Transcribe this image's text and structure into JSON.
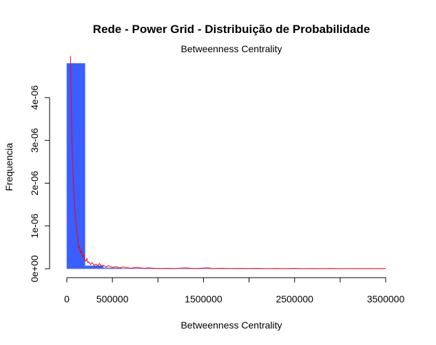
{
  "chart_data": {
    "type": "bar",
    "title": "Rede - Power Grid - Distribuição de Probabilidade",
    "subtitle": "Betweenness Centrality",
    "xlabel": "Betweenness Centrality",
    "ylabel": "Frequencia",
    "xlim": [
      0,
      3500000
    ],
    "ylim": [
      0,
      5e-06
    ],
    "x_ticks": [
      0,
      500000,
      1000000,
      1500000,
      2000000,
      2500000,
      3000000,
      3500000
    ],
    "x_tick_labels": [
      "0",
      "500000",
      "",
      "1500000",
      "",
      "2500000",
      "",
      "3500000"
    ],
    "y_ticks": [
      0,
      1e-06,
      2e-06,
      3e-06,
      4e-06
    ],
    "y_tick_labels": [
      "0e+00",
      "1e-06",
      "2e-06",
      "3e-06",
      "4e-06"
    ],
    "histogram": {
      "bins": [
        [
          0,
          200000
        ],
        [
          200000,
          400000
        ],
        [
          400000,
          600000
        ],
        [
          600000,
          800000
        ],
        [
          800000,
          1000000
        ],
        [
          1000000,
          1200000
        ],
        [
          1200000,
          1400000
        ],
        [
          1400000,
          1600000
        ],
        [
          1600000,
          1800000
        ],
        [
          1800000,
          2000000
        ],
        [
          2000000,
          2200000
        ],
        [
          2200000,
          2400000
        ],
        [
          2400000,
          2600000
        ],
        [
          2600000,
          2800000
        ],
        [
          2800000,
          3000000
        ],
        [
          3000000,
          3200000
        ],
        [
          3200000,
          3400000
        ],
        [
          3400000,
          3600000
        ]
      ],
      "density": [
        4.8e-06,
        7e-08,
        2e-08,
        8e-09,
        5e-09,
        4e-09,
        3e-09,
        3e-09,
        2e-09,
        2e-09,
        2e-09,
        1e-09,
        1e-09,
        1e-09,
        1e-09,
        1e-09,
        1e-09,
        1e-09
      ],
      "color": "#3a5eff"
    },
    "density_line": {
      "color": "#ff0000",
      "points": [
        [
          40000,
          4.97e-06
        ],
        [
          50000,
          3.7e-06
        ],
        [
          60000,
          2.7e-06
        ],
        [
          70000,
          2.1e-06
        ],
        [
          80000,
          1.7e-06
        ],
        [
          90000,
          1.3e-06
        ],
        [
          100000,
          1.1e-06
        ],
        [
          110000,
          8.5e-07
        ],
        [
          120000,
          7e-07
        ],
        [
          130000,
          4.8e-07
        ],
        [
          140000,
          5.2e-07
        ],
        [
          150000,
          3.6e-07
        ],
        [
          160000,
          4.2e-07
        ],
        [
          170000,
          3e-07
        ],
        [
          180000,
          2.8e-07
        ],
        [
          190000,
          3.4e-07
        ],
        [
          200000,
          2e-07
        ],
        [
          210000,
          1.8e-07
        ],
        [
          220000,
          2.4e-07
        ],
        [
          230000,
          1.4e-07
        ],
        [
          240000,
          1.6e-07
        ],
        [
          260000,
          1e-07
        ],
        [
          280000,
          1.4e-07
        ],
        [
          300000,
          8e-08
        ],
        [
          320000,
          1.1e-07
        ],
        [
          340000,
          7e-08
        ],
        [
          360000,
          1.2e-07
        ],
        [
          380000,
          6e-08
        ],
        [
          400000,
          8e-08
        ],
        [
          430000,
          4e-08
        ],
        [
          460000,
          7e-08
        ],
        [
          500000,
          3e-08
        ],
        [
          540000,
          5e-08
        ],
        [
          580000,
          2e-08
        ],
        [
          620000,
          4e-08
        ],
        [
          700000,
          1e-08
        ],
        [
          760000,
          3e-08
        ],
        [
          850000,
          1e-08
        ],
        [
          900000,
          2e-08
        ],
        [
          1000000,
          5e-09
        ],
        [
          1100000,
          1e-08
        ],
        [
          1200000,
          3e-09
        ],
        [
          1300000,
          2e-08
        ],
        [
          1400000,
          5e-09
        ],
        [
          1550000,
          2e-08
        ],
        [
          1600000,
          5e-09
        ],
        [
          1700000,
          1e-08
        ],
        [
          1800000,
          3e-09
        ],
        [
          1900000,
          8e-09
        ],
        [
          2000000,
          3e-09
        ],
        [
          2100000,
          8e-09
        ],
        [
          2200000,
          2e-09
        ],
        [
          2300000,
          6e-09
        ],
        [
          2400000,
          2e-09
        ],
        [
          2500000,
          8e-09
        ],
        [
          2600000,
          2e-09
        ],
        [
          2700000,
          5e-09
        ],
        [
          2800000,
          2e-09
        ],
        [
          2900000,
          6e-09
        ],
        [
          3000000,
          2e-09
        ],
        [
          3100000,
          5e-09
        ],
        [
          3200000,
          2e-09
        ],
        [
          3300000,
          4e-09
        ],
        [
          3400000,
          2e-09
        ],
        [
          3500000,
          3e-09
        ]
      ]
    },
    "grid": false
  }
}
